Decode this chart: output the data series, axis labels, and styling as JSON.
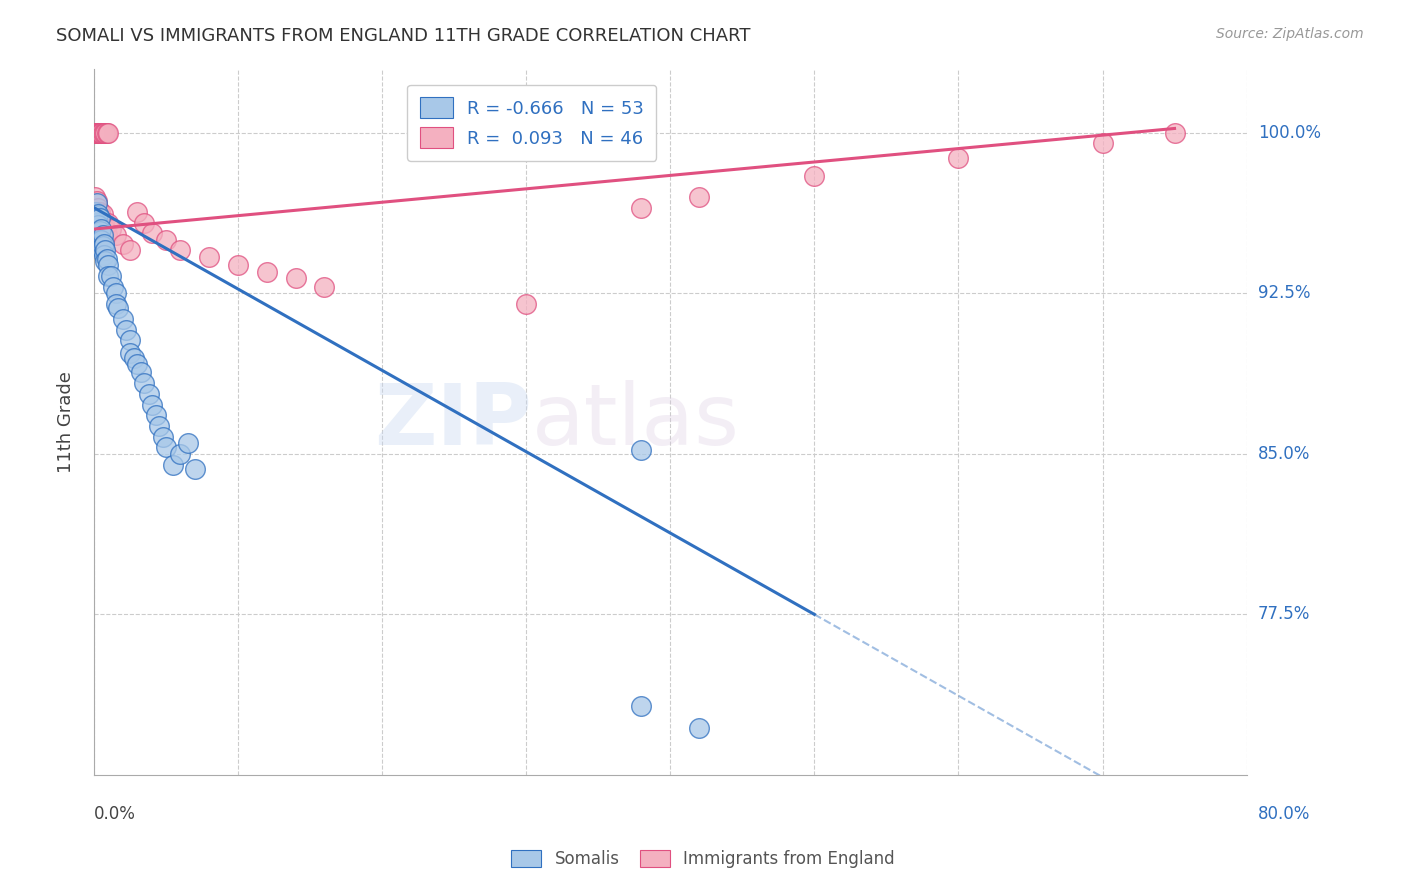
{
  "title": "SOMALI VS IMMIGRANTS FROM ENGLAND 11TH GRADE CORRELATION CHART",
  "source": "Source: ZipAtlas.com",
  "ylabel": "11th Grade",
  "legend_blue_r": "R = -0.666",
  "legend_blue_n": "N = 53",
  "legend_pink_r": "R =  0.093",
  "legend_pink_n": "N = 46",
  "legend_blue_label": "Somalis",
  "legend_pink_label": "Immigrants from England",
  "blue_color": "#a8c8e8",
  "pink_color": "#f4b0c0",
  "blue_line_color": "#3070c0",
  "pink_line_color": "#e05080",
  "watermark_zip": "ZIP",
  "watermark_atlas": "atlas",
  "xlim": [
    0.0,
    0.8
  ],
  "ylim": [
    0.7,
    1.03
  ],
  "yaxis_values": [
    1.0,
    0.925,
    0.85,
    0.775
  ],
  "yaxis_labels": [
    "100.0%",
    "92.5%",
    "85.0%",
    "77.5%"
  ],
  "blue_line_x0": 0.0,
  "blue_line_y0": 0.965,
  "blue_line_x1": 0.5,
  "blue_line_y1": 0.775,
  "blue_line_dash_x1": 0.8,
  "pink_line_x0": 0.0,
  "pink_line_y0": 0.955,
  "pink_line_x1": 0.75,
  "pink_line_y1": 1.002,
  "somali_pts": [
    [
      0.001,
      0.963
    ],
    [
      0.001,
      0.958
    ],
    [
      0.001,
      0.955
    ],
    [
      0.001,
      0.952
    ],
    [
      0.002,
      0.967
    ],
    [
      0.002,
      0.961
    ],
    [
      0.002,
      0.958
    ],
    [
      0.002,
      0.953
    ],
    [
      0.003,
      0.962
    ],
    [
      0.003,
      0.957
    ],
    [
      0.003,
      0.953
    ],
    [
      0.003,
      0.95
    ],
    [
      0.004,
      0.96
    ],
    [
      0.004,
      0.954
    ],
    [
      0.004,
      0.949
    ],
    [
      0.005,
      0.955
    ],
    [
      0.005,
      0.95
    ],
    [
      0.005,
      0.946
    ],
    [
      0.006,
      0.952
    ],
    [
      0.006,
      0.947
    ],
    [
      0.007,
      0.948
    ],
    [
      0.007,
      0.943
    ],
    [
      0.008,
      0.945
    ],
    [
      0.008,
      0.94
    ],
    [
      0.009,
      0.941
    ],
    [
      0.01,
      0.938
    ],
    [
      0.01,
      0.933
    ],
    [
      0.012,
      0.933
    ],
    [
      0.013,
      0.928
    ],
    [
      0.015,
      0.925
    ],
    [
      0.015,
      0.92
    ],
    [
      0.017,
      0.918
    ],
    [
      0.02,
      0.913
    ],
    [
      0.022,
      0.908
    ],
    [
      0.025,
      0.903
    ],
    [
      0.025,
      0.897
    ],
    [
      0.028,
      0.895
    ],
    [
      0.03,
      0.892
    ],
    [
      0.033,
      0.888
    ],
    [
      0.035,
      0.883
    ],
    [
      0.038,
      0.878
    ],
    [
      0.04,
      0.873
    ],
    [
      0.043,
      0.868
    ],
    [
      0.045,
      0.863
    ],
    [
      0.048,
      0.858
    ],
    [
      0.05,
      0.853
    ],
    [
      0.055,
      0.845
    ],
    [
      0.06,
      0.85
    ],
    [
      0.065,
      0.855
    ],
    [
      0.07,
      0.843
    ],
    [
      0.38,
      0.852
    ],
    [
      0.38,
      0.732
    ],
    [
      0.42,
      0.722
    ]
  ],
  "england_pts": [
    [
      0.001,
      1.0
    ],
    [
      0.001,
      1.0
    ],
    [
      0.002,
      1.0
    ],
    [
      0.002,
      1.0
    ],
    [
      0.003,
      1.0
    ],
    [
      0.003,
      1.0
    ],
    [
      0.004,
      1.0
    ],
    [
      0.004,
      1.0
    ],
    [
      0.005,
      1.0
    ],
    [
      0.005,
      1.0
    ],
    [
      0.006,
      1.0
    ],
    [
      0.007,
      1.0
    ],
    [
      0.008,
      1.0
    ],
    [
      0.009,
      1.0
    ],
    [
      0.01,
      1.0
    ],
    [
      0.001,
      0.97
    ],
    [
      0.002,
      0.968
    ],
    [
      0.003,
      0.965
    ],
    [
      0.004,
      0.963
    ],
    [
      0.005,
      0.96
    ],
    [
      0.006,
      0.962
    ],
    [
      0.007,
      0.958
    ],
    [
      0.008,
      0.955
    ],
    [
      0.009,
      0.952
    ],
    [
      0.01,
      0.958
    ],
    [
      0.012,
      0.955
    ],
    [
      0.015,
      0.952
    ],
    [
      0.02,
      0.948
    ],
    [
      0.025,
      0.945
    ],
    [
      0.03,
      0.963
    ],
    [
      0.035,
      0.958
    ],
    [
      0.04,
      0.953
    ],
    [
      0.05,
      0.95
    ],
    [
      0.06,
      0.945
    ],
    [
      0.08,
      0.942
    ],
    [
      0.1,
      0.938
    ],
    [
      0.12,
      0.935
    ],
    [
      0.14,
      0.932
    ],
    [
      0.16,
      0.928
    ],
    [
      0.3,
      0.92
    ],
    [
      0.38,
      0.965
    ],
    [
      0.42,
      0.97
    ],
    [
      0.5,
      0.98
    ],
    [
      0.6,
      0.988
    ],
    [
      0.7,
      0.995
    ],
    [
      0.75,
      1.0
    ]
  ]
}
